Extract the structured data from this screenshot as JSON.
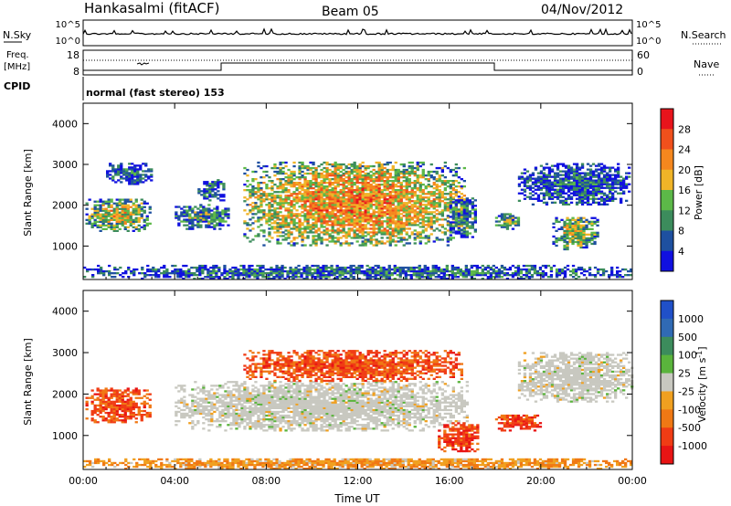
{
  "header": {
    "station": "Hankasalmi (fitACF)",
    "beam": "Beam 05",
    "date": "04/Nov/2012"
  },
  "noise_panel": {
    "left_label": "N.Sky",
    "right_label": "N.Search",
    "left_ticks": [
      "10^5",
      "10^0"
    ],
    "right_ticks": [
      "10^5",
      "10^0"
    ]
  },
  "freq_panel": {
    "left_label_1": "Freq.",
    "left_label_2": "[MHz]",
    "left_ticks": [
      "18",
      "8"
    ],
    "right_label": "Nave",
    "right_ticks": [
      "60",
      "0"
    ]
  },
  "cpid": {
    "label": "CPID",
    "text": "normal (fast stereo) 153"
  },
  "chart_data": [
    {
      "type": "heatmap",
      "name": "power",
      "ylabel": "Slant Range [km]",
      "xlabel": "",
      "ylim": [
        180,
        4500
      ],
      "xlim_hours": [
        0,
        24
      ],
      "yticks": [
        1000,
        2000,
        3000,
        4000
      ],
      "xticks": [
        "00:00",
        "04:00",
        "08:00",
        "12:00",
        "16:00",
        "20:00",
        "00:00"
      ],
      "colorbar": {
        "label": "Power [dB]",
        "ticks": [
          "28",
          "24",
          "20",
          "16",
          "12",
          "8",
          "4"
        ],
        "colors": [
          "#e8141c",
          "#f0501c",
          "#f5871e",
          "#f0b428",
          "#5cb848",
          "#3c8c5c",
          "#1e50a0",
          "#1010e0"
        ]
      },
      "echo_regions": [
        {
          "t0": 0.1,
          "t1": 2.9,
          "r0": 1350,
          "r1": 2150,
          "level": 0.55
        },
        {
          "t0": 1.0,
          "t1": 3.0,
          "r0": 2500,
          "r1": 3000,
          "level": 0.2
        },
        {
          "t0": 4.0,
          "t1": 6.4,
          "r0": 1400,
          "r1": 2000,
          "level": 0.35
        },
        {
          "t0": 5.0,
          "t1": 6.2,
          "r0": 2100,
          "r1": 2600,
          "level": 0.2
        },
        {
          "t0": 7.0,
          "t1": 16.7,
          "r0": 1000,
          "r1": 3050,
          "level": 0.7
        },
        {
          "t0": 16.0,
          "t1": 17.2,
          "r0": 1200,
          "r1": 2200,
          "level": 0.35
        },
        {
          "t0": 18.0,
          "t1": 19.0,
          "r0": 1400,
          "r1": 1800,
          "level": 0.4
        },
        {
          "t0": 19.0,
          "t1": 23.9,
          "r0": 2000,
          "r1": 3000,
          "level": 0.2
        },
        {
          "t0": 20.5,
          "t1": 22.5,
          "r0": 900,
          "r1": 1700,
          "level": 0.5
        },
        {
          "t0": 0.0,
          "t1": 24.0,
          "r0": 180,
          "r1": 500,
          "level": 0.25
        }
      ]
    },
    {
      "type": "heatmap",
      "name": "velocity",
      "ylabel": "Slant Range [km]",
      "xlabel": "Time UT",
      "ylim": [
        180,
        4500
      ],
      "xlim_hours": [
        0,
        24
      ],
      "yticks": [
        1000,
        2000,
        3000,
        4000
      ],
      "xticks": [
        "00:00",
        "04:00",
        "08:00",
        "12:00",
        "16:00",
        "20:00",
        "00:00"
      ],
      "colorbar": {
        "label": "Velocity [m s^-1]",
        "ticks": [
          "1000",
          "500",
          "100",
          "25",
          "-25",
          "-100",
          "-500",
          "-1000"
        ],
        "colors": [
          "#2050c8",
          "#306ab4",
          "#3c8c5c",
          "#5ab43c",
          "#c8c8c0",
          "#f0a020",
          "#f07814",
          "#f03c14",
          "#e81414"
        ]
      },
      "echo_regions": [
        {
          "t0": 0.1,
          "t1": 2.9,
          "r0": 1300,
          "r1": 2150,
          "level": -0.6
        },
        {
          "t0": 4.0,
          "t1": 16.8,
          "r0": 1100,
          "r1": 2300,
          "level": 0.0
        },
        {
          "t0": 7.0,
          "t1": 16.5,
          "r0": 2300,
          "r1": 3050,
          "level": -0.6
        },
        {
          "t0": 15.5,
          "t1": 17.3,
          "r0": 600,
          "r1": 1300,
          "level": -0.7
        },
        {
          "t0": 18.0,
          "t1": 20.0,
          "r0": 1100,
          "r1": 1500,
          "level": -0.7
        },
        {
          "t0": 19.0,
          "t1": 24.0,
          "r0": 1800,
          "r1": 3000,
          "level": 0.0
        },
        {
          "t0": 0.0,
          "t1": 24.0,
          "r0": 180,
          "r1": 450,
          "level": -0.3
        }
      ]
    }
  ]
}
